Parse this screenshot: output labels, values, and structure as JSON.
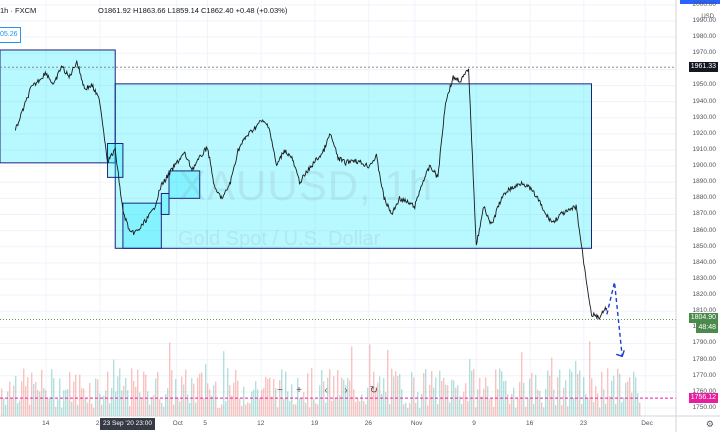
{
  "header": {
    "symbol_tail": "1h · FXCM",
    "ohlc_text": "O1861.92 H1863.66 L1859.14 C1862.40 +0.48 (+0.03%)",
    "left_tab_label": "05.26"
  },
  "watermark": {
    "symbol": "XAUUSD, 1h",
    "description": "Gold Spot / U.S. Dollar"
  },
  "axis": {
    "currency": "USD"
  },
  "price_tags": {
    "high_line": "1961.33",
    "current_price": "1804.90",
    "countdown": "48:48",
    "pink_level": "1756.12"
  },
  "crosshair_label": "23 Sep '20   23:00",
  "nav_buttons": [
    "−",
    "+",
    "‹",
    "›",
    "↻"
  ],
  "colors": {
    "rect_fill": "#00e5ff",
    "rect_border": "#1a237e",
    "candle": "#1b1b1b",
    "projection": "#1a3fd1",
    "price_tag_green": "#4c8a4c",
    "pink": "#e91e9f",
    "volume_up": "#26a69a",
    "volume_down": "#ef5350"
  },
  "chart_data": {
    "type": "line",
    "y_axis_ticks": [
      2000,
      1990,
      1980,
      1970,
      1960,
      1950,
      1940,
      1930,
      1920,
      1910,
      1900,
      1890,
      1880,
      1870,
      1860,
      1850,
      1840,
      1830,
      1820,
      1810,
      1800,
      1790,
      1780,
      1770,
      1760,
      1750
    ],
    "y_axis_labels": [
      "2000.00",
      "1990.00",
      "1980.00",
      "1970.00",
      "1960.00",
      "1950.00",
      "1940.00",
      "1930.00",
      "1920.00",
      "1910.00",
      "1900.00",
      "1890.00",
      "1880.00",
      "1870.00",
      "1860.00",
      "1850.00",
      "1840.00",
      "1830.00",
      "1820.00",
      "1810.00",
      "1800.00",
      "1790.00",
      "1780.00",
      "1770.00",
      "1760.00",
      "1750.00"
    ],
    "x_axis_labels": [
      "14",
      "21",
      "Oct",
      "5",
      "12",
      "19",
      "26",
      "Nov",
      "9",
      "16",
      "23",
      "Dec"
    ],
    "x_axis_dates": [
      "2020-09-14",
      "2020-09-21",
      "2020-10-01",
      "2020-10-05",
      "2020-10-12",
      "2020-10-19",
      "2020-10-26",
      "2020-11-01",
      "2020-11-09",
      "2020-11-16",
      "2020-11-23",
      "2020-12-01"
    ],
    "ylim": [
      1745,
      2003
    ],
    "series": [
      {
        "points": [
          [
            "2020-09-10",
            1922
          ],
          [
            "2020-09-12",
            1948
          ],
          [
            "2020-09-14",
            1958
          ],
          [
            "2020-09-15",
            1950
          ],
          [
            "2020-09-16",
            1962
          ],
          [
            "2020-09-17",
            1955
          ],
          [
            "2020-09-18",
            1965
          ],
          [
            "2020-09-19",
            1948
          ],
          [
            "2020-09-20",
            1950
          ],
          [
            "2020-09-21",
            1940
          ],
          [
            "2020-09-22",
            1903
          ],
          [
            "2020-09-23",
            1910
          ],
          [
            "2020-09-24",
            1872
          ],
          [
            "2020-09-25",
            1858
          ],
          [
            "2020-09-26",
            1860
          ],
          [
            "2020-09-28",
            1873
          ],
          [
            "2020-09-29",
            1888
          ],
          [
            "2020-09-30",
            1895
          ],
          [
            "2020-10-01",
            1902
          ],
          [
            "2020-10-02",
            1908
          ],
          [
            "2020-10-03",
            1898
          ],
          [
            "2020-10-05",
            1912
          ],
          [
            "2020-10-06",
            1885
          ],
          [
            "2020-10-07",
            1880
          ],
          [
            "2020-10-08",
            1890
          ],
          [
            "2020-10-09",
            1910
          ],
          [
            "2020-10-10",
            1918
          ],
          [
            "2020-10-12",
            1928
          ],
          [
            "2020-10-13",
            1925
          ],
          [
            "2020-10-14",
            1900
          ],
          [
            "2020-10-15",
            1910
          ],
          [
            "2020-10-16",
            1905
          ],
          [
            "2020-10-17",
            1890
          ],
          [
            "2020-10-19",
            1903
          ],
          [
            "2020-10-20",
            1908
          ],
          [
            "2020-10-21",
            1920
          ],
          [
            "2020-10-22",
            1905
          ],
          [
            "2020-10-23",
            1902
          ],
          [
            "2020-10-24",
            1904
          ],
          [
            "2020-10-26",
            1900
          ],
          [
            "2020-10-27",
            1906
          ],
          [
            "2020-10-28",
            1880
          ],
          [
            "2020-10-29",
            1870
          ],
          [
            "2020-10-30",
            1880
          ],
          [
            "2020-11-01",
            1875
          ],
          [
            "2020-11-02",
            1890
          ],
          [
            "2020-11-03",
            1900
          ],
          [
            "2020-11-04",
            1893
          ],
          [
            "2020-11-05",
            1940
          ],
          [
            "2020-11-06",
            1955
          ],
          [
            "2020-11-07",
            1953
          ],
          [
            "2020-11-08",
            1960
          ],
          [
            "2020-11-09",
            1851
          ],
          [
            "2020-11-10",
            1875
          ],
          [
            "2020-11-11",
            1863
          ],
          [
            "2020-11-12",
            1877
          ],
          [
            "2020-11-13",
            1885
          ],
          [
            "2020-11-14",
            1887
          ],
          [
            "2020-11-15",
            1890
          ],
          [
            "2020-11-16",
            1886
          ],
          [
            "2020-11-17",
            1880
          ],
          [
            "2020-11-18",
            1870
          ],
          [
            "2020-11-19",
            1865
          ],
          [
            "2020-11-20",
            1870
          ],
          [
            "2020-11-21",
            1872
          ],
          [
            "2020-11-22",
            1875
          ],
          [
            "2020-11-23",
            1840
          ],
          [
            "2020-11-24",
            1808
          ],
          [
            "2020-11-25",
            1806
          ],
          [
            "2020-11-26",
            1812
          ]
        ]
      },
      {
        "points": [
          [
            "2020-11-26",
            1808
          ],
          [
            "2020-11-27",
            1828
          ],
          [
            "2020-11-28",
            1782
          ]
        ]
      }
    ],
    "rectangles": [
      [
        "2020-09-08",
        1972,
        "2020-09-23",
        1902
      ],
      [
        "2020-09-23",
        1951,
        "2020-11-24",
        1849
      ],
      [
        "2020-09-22",
        1914,
        "2020-09-24",
        1893
      ],
      [
        "2020-09-24",
        1877,
        "2020-09-29",
        1849
      ],
      [
        "2020-09-29",
        1883,
        "2020-09-30",
        1870
      ],
      [
        "2020-09-30",
        1897,
        "2020-10-04",
        1880
      ]
    ],
    "level_lines": [
      1961.33,
      1804.9,
      1756.12
    ]
  }
}
